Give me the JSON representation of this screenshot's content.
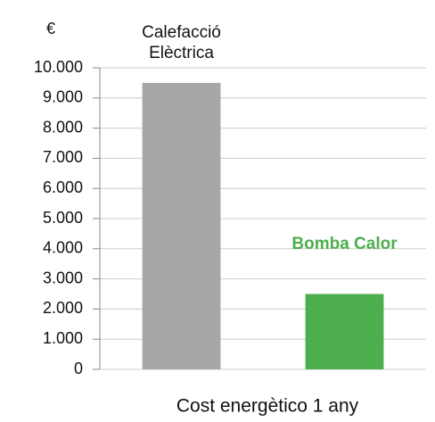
{
  "chart_data": {
    "type": "bar",
    "y_axis_label": "€",
    "x_axis_label": "Cost energètico 1 any",
    "categories": [
      "Calefacció Elèctrica",
      "Bomba Calor"
    ],
    "values": [
      9500,
      2500
    ],
    "colors": [
      "#a7a7a9",
      "#4cae4c"
    ],
    "category_label_colors": [
      "#111111",
      "#4cae4c"
    ],
    "category_label_bold": [
      false,
      true
    ],
    "ylim": [
      0,
      10000
    ],
    "yticks": [
      0,
      {
        "value": 1000,
        "label": "1.000"
      },
      {
        "value": 2000,
        "label": "2.000"
      },
      {
        "value": 3000,
        "label": "3.000"
      },
      {
        "value": 4000,
        "label": "4.000"
      },
      {
        "value": 5000,
        "label": "5.000"
      },
      {
        "value": 6000,
        "label": "6.000"
      },
      {
        "value": 7000,
        "label": "7.000"
      },
      {
        "value": 8000,
        "label": "8.000"
      },
      {
        "value": 9000,
        "label": "9.000"
      },
      {
        "value": 10000,
        "label": "10.000"
      }
    ],
    "grid": true
  }
}
